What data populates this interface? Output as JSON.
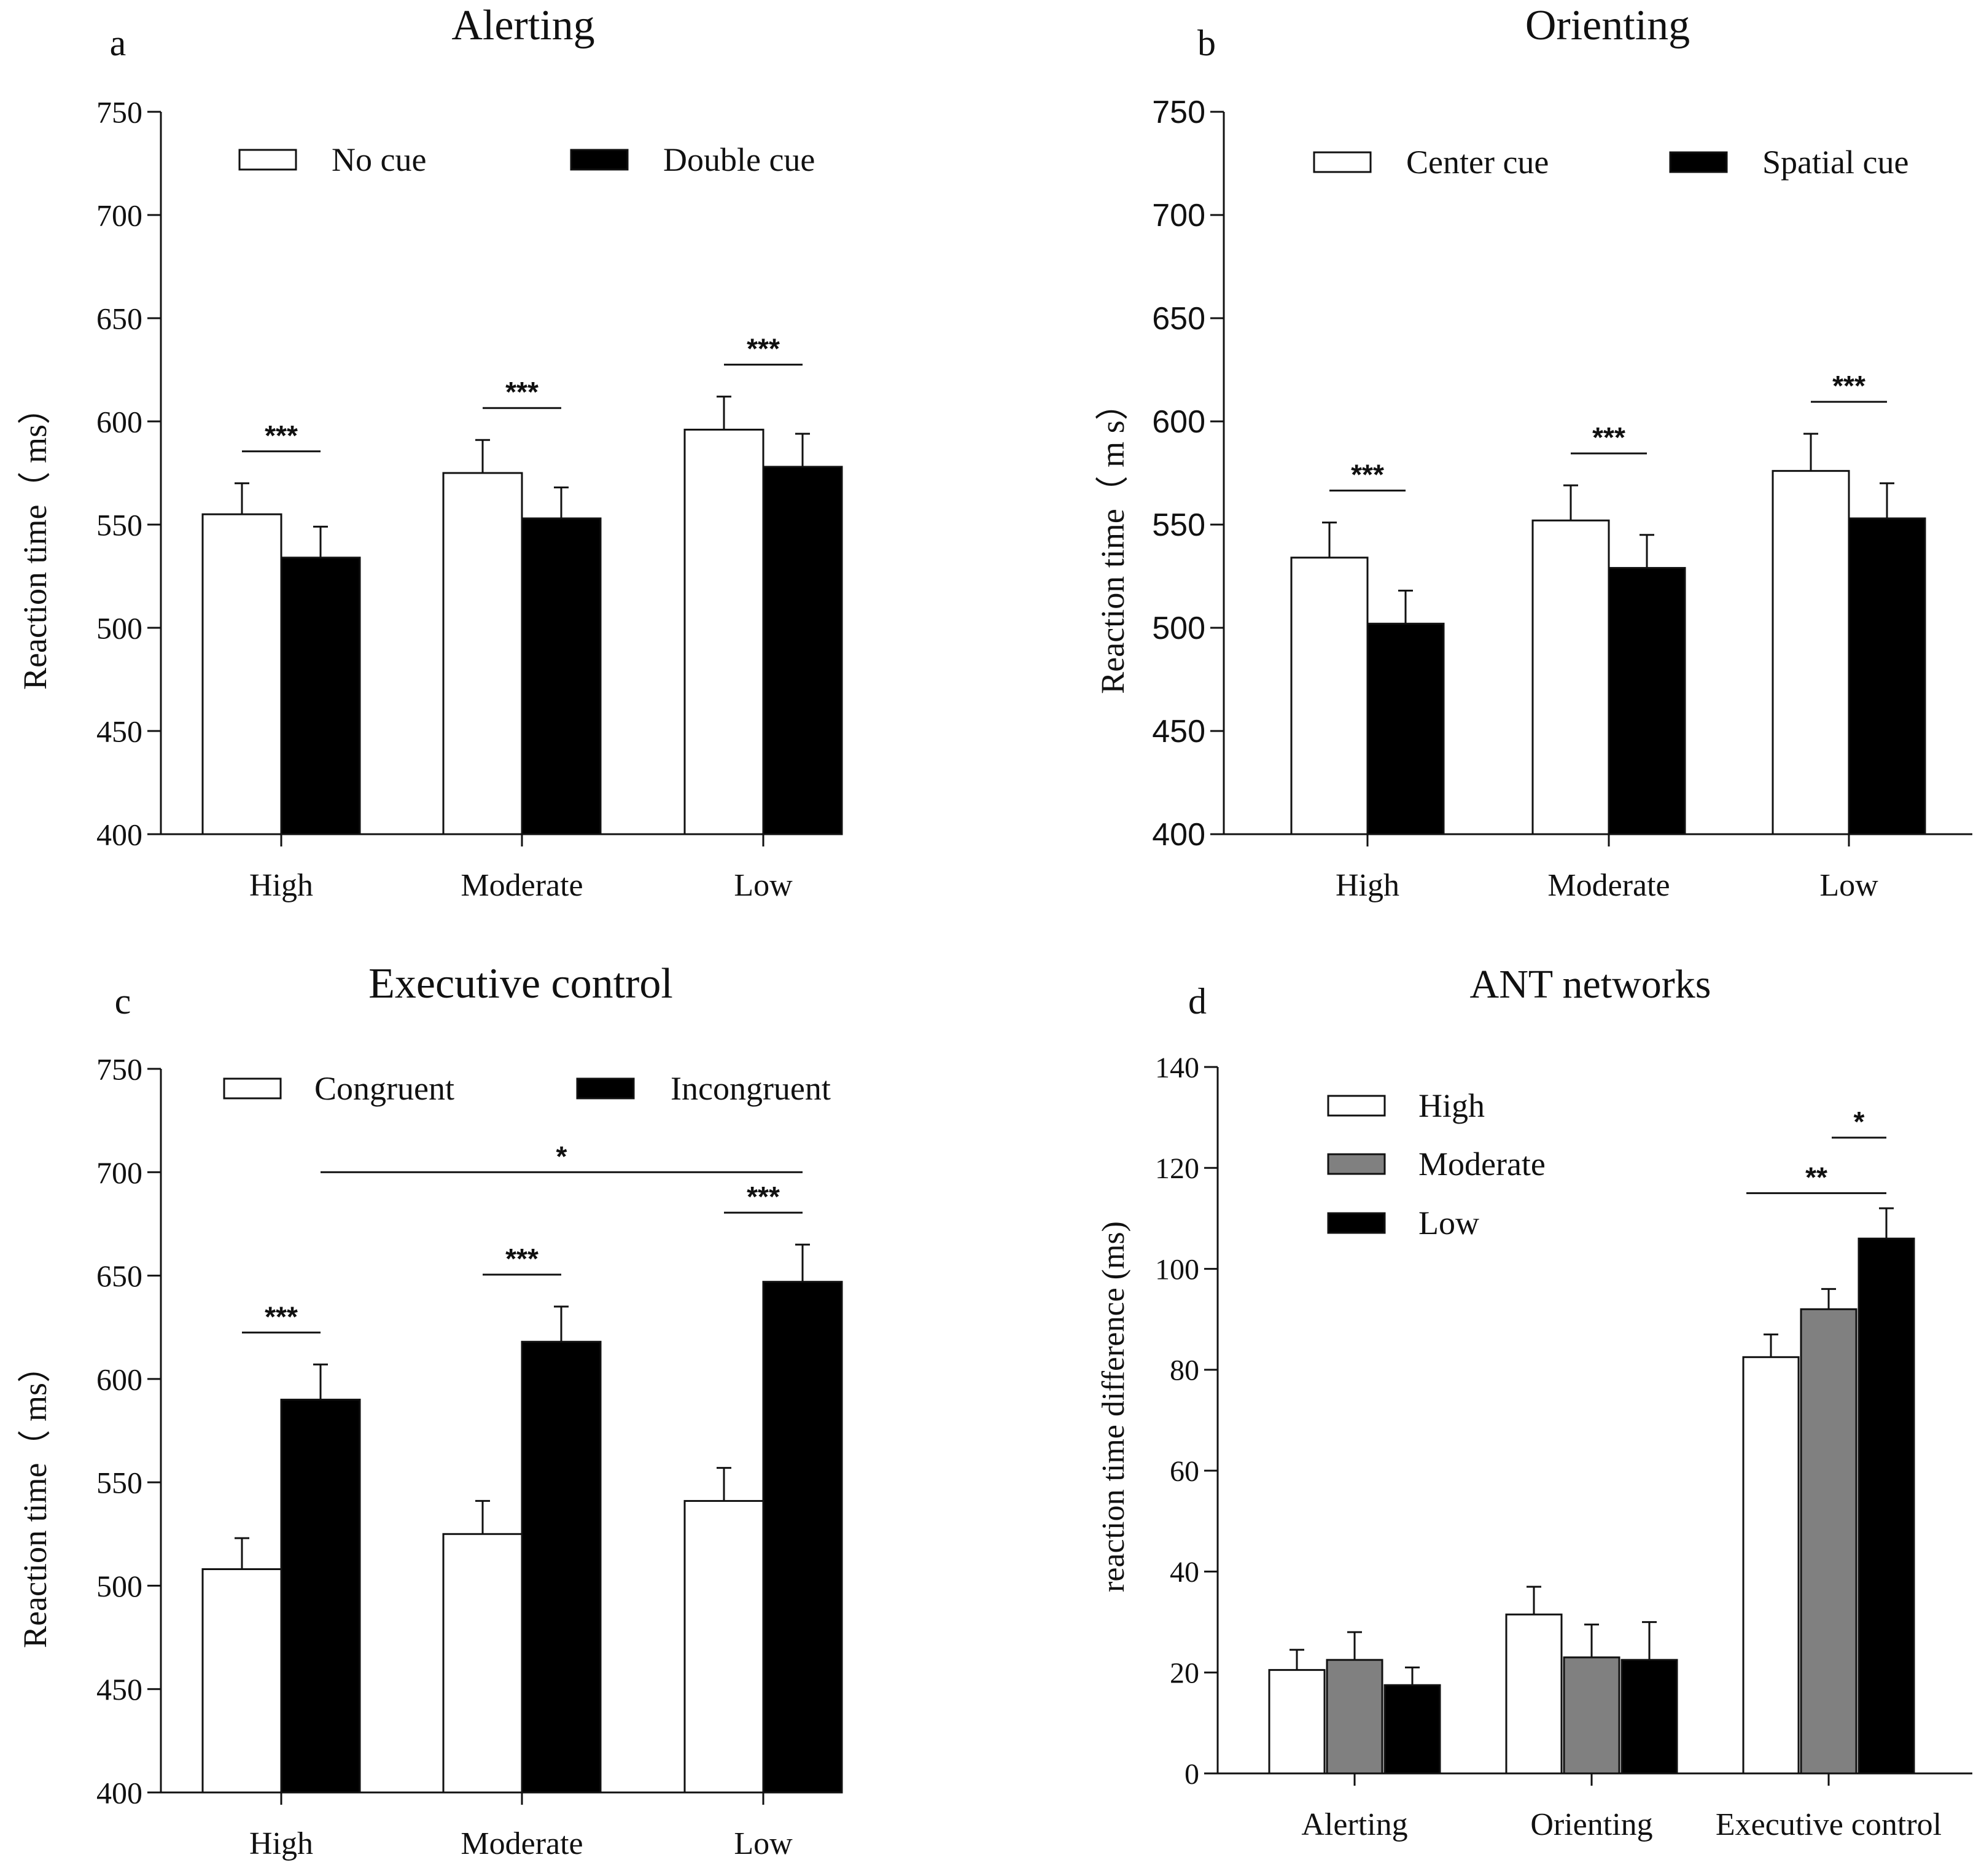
{
  "chart_data": [
    {
      "type": "bar",
      "panel_letter": "a",
      "title": "Alerting",
      "ylabel": "Reaction time（ ms）",
      "xlabel": "",
      "ylim": [
        400,
        750
      ],
      "yticks": [
        "400",
        "450",
        "500",
        "550",
        "600",
        "650",
        "700",
        "750"
      ],
      "categories": [
        "High",
        "Moderate",
        "Low"
      ],
      "series": [
        {
          "name": "No cue",
          "color": "#ffffff",
          "values": [
            555,
            575,
            596
          ],
          "errors": [
            15,
            16,
            16
          ]
        },
        {
          "name": "Double cue",
          "color": "#000000",
          "values": [
            534,
            553,
            578
          ],
          "errors": [
            15,
            15,
            16
          ]
        }
      ],
      "legend": "top",
      "significance": [
        {
          "label": "***",
          "category": 0
        },
        {
          "label": "***",
          "category": 1
        },
        {
          "label": "***",
          "category": 2
        }
      ]
    },
    {
      "type": "bar",
      "panel_letter": "b",
      "title": "Orienting",
      "ylabel": "Reaction time（ m s）",
      "xlabel": "",
      "ylim": [
        400,
        750
      ],
      "yticks": [
        "400",
        "450",
        "500",
        "550",
        "600",
        "650",
        "700",
        "750"
      ],
      "categories": [
        "High",
        "Moderate",
        "Low"
      ],
      "series": [
        {
          "name": "Center cue",
          "color": "#ffffff",
          "values": [
            534,
            552,
            576
          ],
          "errors": [
            17,
            17,
            18
          ]
        },
        {
          "name": "Spatial cue",
          "color": "#000000",
          "values": [
            502,
            529,
            553
          ],
          "errors": [
            16,
            16,
            17
          ]
        }
      ],
      "legend": "top",
      "significance": [
        {
          "label": "***",
          "category": 0
        },
        {
          "label": "***",
          "category": 1
        },
        {
          "label": "***",
          "category": 2
        }
      ]
    },
    {
      "type": "bar",
      "panel_letter": "c",
      "title": "Executive control",
      "ylabel": "Reaction time（ ms）",
      "xlabel": "",
      "ylim": [
        400,
        750
      ],
      "yticks": [
        "400",
        "450",
        "500",
        "550",
        "600",
        "650",
        "700",
        "750"
      ],
      "categories": [
        "High",
        "Moderate",
        "Low"
      ],
      "series": [
        {
          "name": "Congruent",
          "color": "#ffffff",
          "values": [
            508,
            525,
            541
          ],
          "errors": [
            15,
            16,
            16
          ]
        },
        {
          "name": "Incongruent",
          "color": "#000000",
          "values": [
            590,
            618,
            647
          ],
          "errors": [
            17,
            17,
            18
          ]
        }
      ],
      "legend": "top",
      "significance": [
        {
          "label": "***",
          "category": 0
        },
        {
          "label": "***",
          "category": 1
        },
        {
          "label": "***",
          "category": 2
        },
        {
          "label": "*",
          "from_category": 0,
          "to_category": 2,
          "series": "Incongruent",
          "level": 700
        }
      ]
    },
    {
      "type": "bar",
      "panel_letter": "d",
      "title": "ANT networks",
      "ylabel": "reaction time difference (ms)",
      "xlabel": "",
      "ylim": [
        0,
        140
      ],
      "yticks": [
        "0",
        "20",
        "40",
        "60",
        "80",
        "100",
        "120",
        "140"
      ],
      "categories": [
        "Alerting",
        "Orienting",
        "Executive control"
      ],
      "series": [
        {
          "name": "High",
          "color": "#ffffff",
          "values": [
            20.5,
            31.5,
            82.5
          ],
          "errors": [
            4,
            5.5,
            4.5
          ]
        },
        {
          "name": "Moderate",
          "color": "#808080",
          "values": [
            22.5,
            23,
            92
          ],
          "errors": [
            5.5,
            6.5,
            4
          ]
        },
        {
          "name": "Low",
          "color": "#000000",
          "values": [
            17.5,
            22.5,
            106
          ],
          "errors": [
            3.5,
            7.5,
            6
          ]
        }
      ],
      "legend": "top-left",
      "significance": [
        {
          "label": "**",
          "category": 2,
          "from_series": 0,
          "to_series": 2,
          "level": 115
        },
        {
          "label": "*",
          "category": 2,
          "from_series": 1,
          "to_series": 2,
          "level": 126
        }
      ]
    }
  ]
}
